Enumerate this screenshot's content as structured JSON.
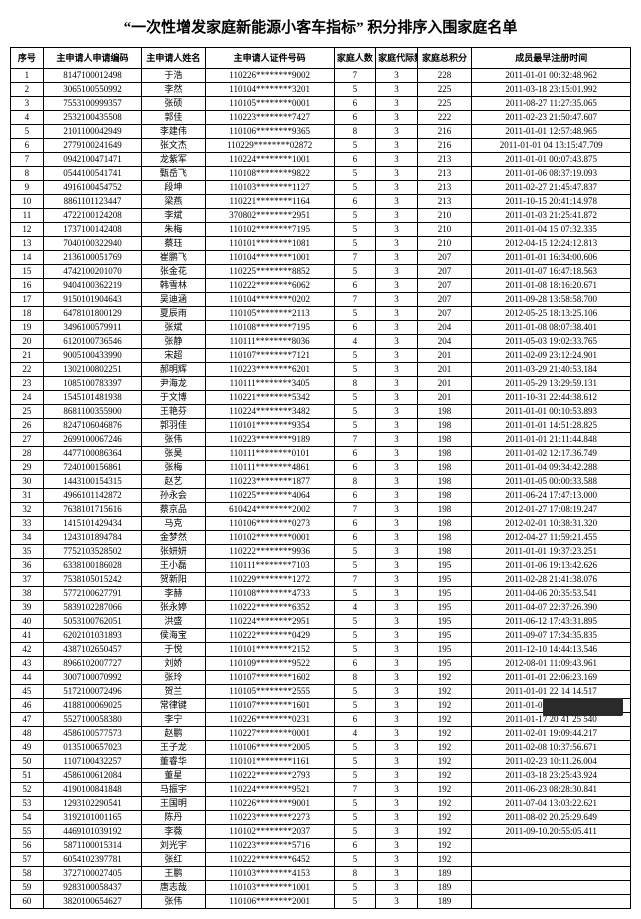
{
  "title": "“一次性增发家庭新能源小客车指标” 积分排序入围家庭名单",
  "columns": [
    "序号",
    "主申请人申请编码",
    "主申请人姓名",
    "主申请人证件号码",
    "家庭人数",
    "家庭代际数",
    "家庭总积分",
    "成员最早注册时间"
  ],
  "rows": [
    [
      "1",
      "8147100012498",
      "于浩",
      "110226********9002",
      "7",
      "3",
      "228",
      "2011-01-01 00:32:48.962"
    ],
    [
      "2",
      "3065100550992",
      "李然",
      "110104********3201",
      "5",
      "3",
      "225",
      "2011-03-18 23:15:01.992"
    ],
    [
      "3",
      "7553100999357",
      "张硕",
      "110105********0001",
      "6",
      "3",
      "225",
      "2011-08-27 11:27:35.065"
    ],
    [
      "4",
      "2532100435508",
      "郭佳",
      "110223********7427",
      "6",
      "3",
      "222",
      "2011-02-23 21:50:47.607"
    ],
    [
      "5",
      "2101100042949",
      "李建伟",
      "110106********9365",
      "8",
      "3",
      "216",
      "2011-01-01 12:57:48.965"
    ],
    [
      "6",
      "2779100241649",
      "张文杰",
      "110229********02872",
      "5",
      "3",
      "216",
      "2011-01-01 04 13:15:47.709"
    ],
    [
      "7",
      "0942100471471",
      "龙紫军",
      "110224********1001",
      "6",
      "3",
      "213",
      "2011-01-01 00:07:43.875"
    ],
    [
      "8",
      "0544100541741",
      "甄岳飞",
      "110108********9822",
      "5",
      "3",
      "213",
      "2011-01-06 08:37:19.093"
    ],
    [
      "9",
      "4916100454752",
      "段坤",
      "110103********1127",
      "5",
      "3",
      "213",
      "2011-02-27 21:45:47.837"
    ],
    [
      "10",
      "8861101123447",
      "梁燕",
      "110221********1164",
      "6",
      "3",
      "213",
      "2011-10-15 20:41:14.978"
    ],
    [
      "11",
      "4722100124208",
      "李斌",
      "370802********2951",
      "5",
      "3",
      "210",
      "2011-01-03 21:25:41.872"
    ],
    [
      "12",
      "1737100142408",
      "朱梅",
      "110102********7195",
      "5",
      "3",
      "210",
      "2011-01-04 15 07:32.335"
    ],
    [
      "13",
      "7040100322940",
      "蔡珏",
      "110101********1081",
      "5",
      "3",
      "210",
      "2012-04-15 12:24:12.813"
    ],
    [
      "14",
      "2136100051769",
      "崔鹏飞",
      "110104********1001",
      "7",
      "3",
      "207",
      "2011-01-01 16:34:00.606"
    ],
    [
      "15",
      "4742100201070",
      "张金花",
      "110225********8852",
      "5",
      "3",
      "207",
      "2011-01-07 16:47:18.563"
    ],
    [
      "16",
      "9404100362219",
      "韩雪林",
      "110222********6062",
      "6",
      "3",
      "207",
      "2011-01-08 18:16:20.671"
    ],
    [
      "17",
      "9150101904643",
      "吴迪涵",
      "110104********0202",
      "7",
      "3",
      "207",
      "2011-09-28 13:58:58.700"
    ],
    [
      "18",
      "6478101800129",
      "夏辰雨",
      "110105********2113",
      "5",
      "3",
      "207",
      "2012-05-25 18:13:25.106"
    ],
    [
      "19",
      "3496100579911",
      "张斌",
      "110108********7195",
      "6",
      "3",
      "204",
      "2011-01-08 08:07:38.401"
    ],
    [
      "20",
      "6120100736546",
      "张静",
      "110111********8036",
      "4",
      "3",
      "204",
      "2011-05-03 19:02:33.765"
    ],
    [
      "21",
      "9005100433990",
      "宋超",
      "110107********7121",
      "5",
      "3",
      "201",
      "2011-02-09 23:12:24.901"
    ],
    [
      "22",
      "1302100802251",
      "郝明辉",
      "110223********6201",
      "5",
      "3",
      "201",
      "2011-03-29 21:40:53.184"
    ],
    [
      "23",
      "1085100783397",
      "尹海龙",
      "110111********3405",
      "8",
      "3",
      "201",
      "2011-05-29 13:29:59.131"
    ],
    [
      "24",
      "1545101481938",
      "于文博",
      "110221********5342",
      "5",
      "3",
      "201",
      "2011-10-31 22:44:38.612"
    ],
    [
      "25",
      "8681100355900",
      "王艳芬",
      "110224********3482",
      "5",
      "3",
      "198",
      "2011-01-01 00:10:53.893"
    ],
    [
      "26",
      "8247106046876",
      "郭羽佳",
      "110101********9354",
      "5",
      "3",
      "198",
      "2011-01-01 14:51:28.825"
    ],
    [
      "27",
      "2699100067246",
      "张伟",
      "110223********9189",
      "7",
      "3",
      "198",
      "2011-01-01 21:11:44.848"
    ],
    [
      "28",
      "4477100086364",
      "张昊",
      "110111********0101",
      "6",
      "3",
      "198",
      "2011-01-02 12:17.36.749"
    ],
    [
      "29",
      "7240100156861",
      "张梅",
      "110111********4861",
      "6",
      "3",
      "198",
      "2011-01-04 09:34:42.288"
    ],
    [
      "30",
      "1443100154315",
      "赵艺",
      "110223********1877",
      "8",
      "3",
      "198",
      "2011-01-05 00:00:33.588"
    ],
    [
      "31",
      "4966101142872",
      "孙永会",
      "110225********4064",
      "6",
      "3",
      "198",
      "2011-06-24 17:47:13.000"
    ],
    [
      "32",
      "7638101715616",
      "蔡京品",
      "610424********2002",
      "7",
      "3",
      "198",
      "2012-01-27 17:08:19.247"
    ],
    [
      "33",
      "1415101429434",
      "马克",
      "110106********0273",
      "6",
      "3",
      "198",
      "2012-02-01 10:38:31.320"
    ],
    [
      "34",
      "1243101894784",
      "金梦然",
      "110102********0001",
      "6",
      "3",
      "198",
      "2012-04-27 11:59:21.455"
    ],
    [
      "35",
      "7752103528502",
      "张妍妍",
      "110222********9936",
      "5",
      "3",
      "198",
      "2011-01-01 19:37:23.251"
    ],
    [
      "36",
      "6338100186028",
      "王小磊",
      "110111********7103",
      "5",
      "3",
      "195",
      "2011-01-06 19:13:42.626"
    ],
    [
      "37",
      "7538105015242",
      "贺新阳",
      "110229********1272",
      "7",
      "3",
      "195",
      "2011-02-28 21:41:38.076"
    ],
    [
      "38",
      "5772100627791",
      "李赫",
      "110108********4733",
      "5",
      "3",
      "195",
      "2011-04-06 20:35:53.541"
    ],
    [
      "39",
      "5839102287066",
      "张永婷",
      "110222********6352",
      "4",
      "3",
      "195",
      "2011-04-07 22:37:26.390"
    ],
    [
      "40",
      "5053100762051",
      "洪盛",
      "110224********2951",
      "5",
      "3",
      "195",
      "2011-06-12 17:43:31.895"
    ],
    [
      "41",
      "6202101031893",
      "侯海宝",
      "110222********0429",
      "5",
      "3",
      "195",
      "2011-09-07 17:34:35.835"
    ],
    [
      "42",
      "4387102650457",
      "于悦",
      "110101********2152",
      "5",
      "3",
      "195",
      "2011-12-10 14:44:13.546"
    ],
    [
      "43",
      "8966102007727",
      "刘娇",
      "110109********9522",
      "6",
      "3",
      "195",
      "2012-08-01 11:09:43.961"
    ],
    [
      "44",
      "3007100070992",
      "张玲",
      "110107********1602",
      "8",
      "3",
      "192",
      "2011-01-01 22:06:23.169"
    ],
    [
      "45",
      "5172100072496",
      "贺兰",
      "110105********2555",
      "5",
      "3",
      "192",
      "2011-01-01 22 14 14.517"
    ],
    [
      "46",
      "4188100069025",
      "常律键",
      "110107********1601",
      "5",
      "3",
      "192",
      "2011-01-01 12:28:54.464"
    ],
    [
      "47",
      "5527100058380",
      "李宁",
      "110226********0231",
      "6",
      "3",
      "192",
      "2011-01-17 20 41 25 540"
    ],
    [
      "48",
      "4586100577573",
      "赵鹏",
      "110227********0001",
      "4",
      "3",
      "192",
      "2011-02-01 19:09:44.217"
    ],
    [
      "49",
      "0135100657023",
      "王子龙",
      "110106********2005",
      "5",
      "3",
      "192",
      "2011-02-08 10:37:56.671"
    ],
    [
      "50",
      "1107100432257",
      "董睿华",
      "110101********1161",
      "5",
      "3",
      "192",
      "2011-02-23 10:11.26.004"
    ],
    [
      "51",
      "4586100612084",
      "董星",
      "110222********2793",
      "5",
      "3",
      "192",
      "2011-03-18 23:25:43.924"
    ],
    [
      "52",
      "4190100841848",
      "马振宇",
      "110224********9521",
      "7",
      "3",
      "192",
      "2011-06-23 08:28:30.841"
    ],
    [
      "53",
      "1293102290541",
      "王国明",
      "110226********9001",
      "5",
      "3",
      "192",
      "2011-07-04 13:03:22.621"
    ],
    [
      "54",
      "3192101001165",
      "陈丹",
      "110223********2273",
      "5",
      "3",
      "192",
      "2011-08-02 20.25:29.649"
    ],
    [
      "55",
      "4469101039192",
      "李薇",
      "110102********2037",
      "5",
      "3",
      "192",
      "2011-09-10.20:55:05.411"
    ],
    [
      "56",
      "5871100015314",
      "刘光宇",
      "110223********5716",
      "6",
      "3",
      "192",
      ""
    ],
    [
      "57",
      "6054102397781",
      "张红",
      "110222********6452",
      "5",
      "3",
      "192",
      ""
    ],
    [
      "58",
      "3727100027405",
      "王鹏",
      "110103********4153",
      "8",
      "3",
      "189",
      ""
    ],
    [
      "59",
      "9283100058437",
      "唐志哉",
      "110103********1001",
      "5",
      "3",
      "189",
      ""
    ],
    [
      "60",
      "3820100654627",
      "张伟",
      "110106********2001",
      "5",
      "3",
      "189",
      ""
    ]
  ]
}
